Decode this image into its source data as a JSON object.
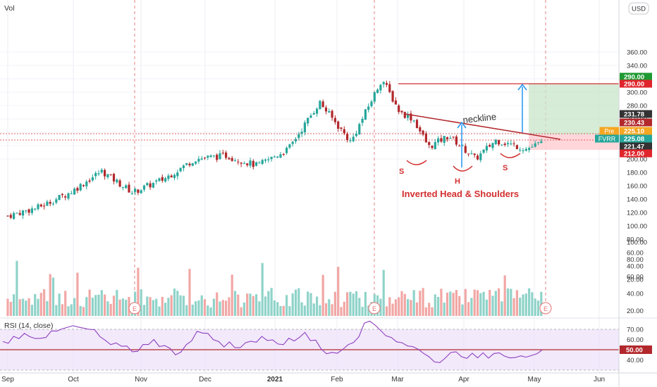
{
  "header": {
    "vol_label": "Vol",
    "currency_button": "USD"
  },
  "rsi_label": "RSI (14, close)",
  "annotations": {
    "neckline": "neckline",
    "pattern": "Inverted Head & Shoulders",
    "s_left": "S",
    "h": "H",
    "s_right": "S",
    "earnings": "E"
  },
  "colors": {
    "up": "#26a69a",
    "down": "#b2282c",
    "rsi": "#8e3fbf",
    "annotation": "#d32f2f",
    "arrow": "#2196f3"
  },
  "chart_data": {
    "type": "candlestick",
    "title": "",
    "x_labels": [
      "Sep",
      "Oct",
      "Nov",
      "Dec",
      "2021",
      "Feb",
      "Mar",
      "Apr",
      "May",
      "Jun"
    ],
    "y_ticks": [
      20,
      40,
      60,
      80,
      100,
      120,
      140,
      160,
      180,
      200,
      220,
      240,
      260,
      280,
      300,
      320,
      340,
      360
    ],
    "price_badges": [
      {
        "label": "290.00",
        "value": 290,
        "color": "#1e9a32"
      },
      {
        "label": "290.00",
        "value": 288,
        "color": "#e0262c"
      },
      {
        "label": "231.78",
        "value": 231.78,
        "color": "#333333"
      },
      {
        "label": "230.43",
        "value": 230.43,
        "color": "#b2282c"
      },
      {
        "label": "225.10",
        "value": 225.1,
        "color": "#f5a623",
        "tag": "Pre"
      },
      {
        "label": "225.08",
        "value": 225.08,
        "color": "#26a69a",
        "tag": "FVRR"
      },
      {
        "label": "221.47",
        "value": 221.47,
        "color": "#333333"
      },
      {
        "label": "212.00",
        "value": 212,
        "color": "#e0262c"
      }
    ],
    "price_path": [
      {
        "date": "2020-09-01",
        "close": 115
      },
      {
        "date": "2020-09-15",
        "close": 128
      },
      {
        "date": "2020-09-29",
        "close": 150
      },
      {
        "date": "2020-10-13",
        "close": 182
      },
      {
        "date": "2020-10-27",
        "close": 150
      },
      {
        "date": "2020-11-10",
        "close": 170
      },
      {
        "date": "2020-11-24",
        "close": 200
      },
      {
        "date": "2020-12-08",
        "close": 205
      },
      {
        "date": "2020-12-22",
        "close": 190
      },
      {
        "date": "2021-01-05",
        "close": 215
      },
      {
        "date": "2021-01-19",
        "close": 285
      },
      {
        "date": "2021-02-02",
        "close": 225
      },
      {
        "date": "2021-02-16",
        "close": 320
      },
      {
        "date": "2021-02-24",
        "close": 270
      },
      {
        "date": "2021-03-02",
        "close": 260
      },
      {
        "date": "2021-03-09",
        "close": 218
      },
      {
        "date": "2021-03-18",
        "close": 235
      },
      {
        "date": "2021-03-30",
        "close": 200
      },
      {
        "date": "2021-04-08",
        "close": 228
      },
      {
        "date": "2021-04-22",
        "close": 215
      },
      {
        "date": "2021-04-29",
        "close": 225
      }
    ],
    "volume_axis": {
      "ticks": [
        20,
        40,
        60,
        80,
        100
      ]
    },
    "rsi": {
      "ticks": [
        40,
        50,
        60,
        70
      ],
      "level": 50,
      "level_label": "50.00",
      "path": [
        58,
        66,
        62,
        72,
        70,
        55,
        48,
        60,
        45,
        68,
        58,
        52,
        63,
        55,
        67,
        46,
        55,
        78,
        62,
        53,
        38,
        48,
        42,
        47,
        44,
        50
      ]
    }
  }
}
